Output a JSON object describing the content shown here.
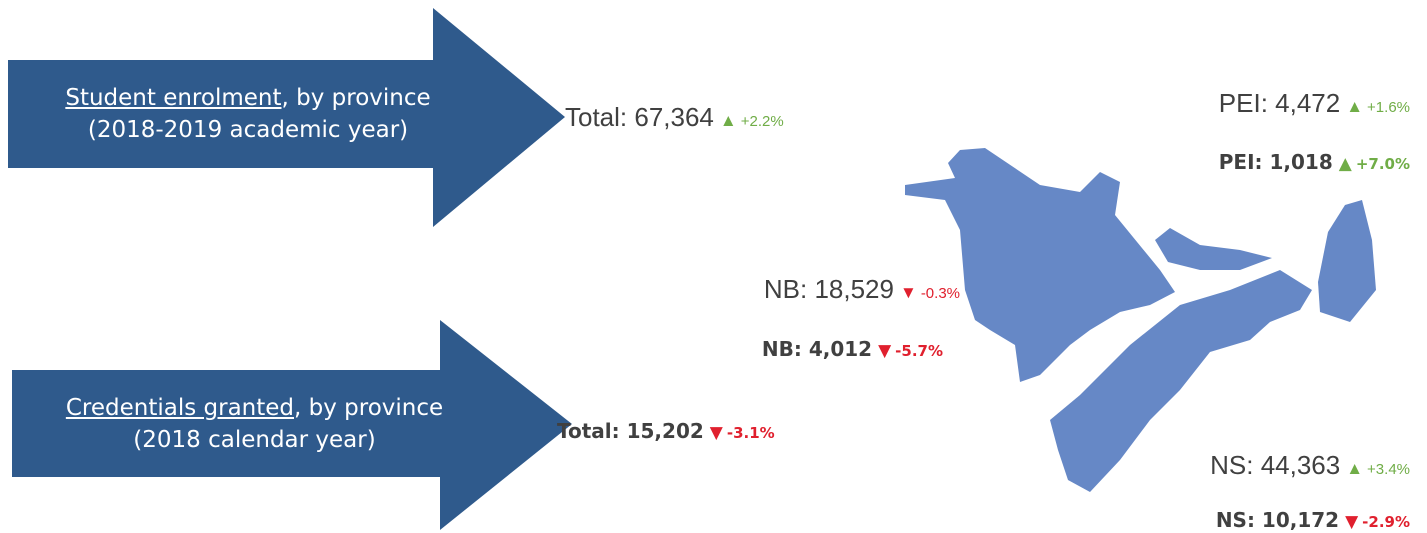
{
  "arrows": [
    {
      "title": "Student enrolment",
      "title_rest": ", by province",
      "subtitle": "(2018-2019 academic year)"
    },
    {
      "title": "Credentials granted",
      "title_rest": ", by province",
      "subtitle": "(2018 calendar year)"
    }
  ],
  "enrolment": {
    "total": {
      "label": "Total: 67,364",
      "arrow": "▲",
      "change": "+2.2%"
    },
    "pei": {
      "label": "PEI: 4,472",
      "arrow": "▲",
      "change": "+1.6%"
    },
    "nb": {
      "label": "NB: 18,529",
      "arrow": "▼",
      "change": "-0.3%"
    },
    "ns": {
      "label": "NS: 44,363",
      "arrow": "▲",
      "change": "+3.4%"
    }
  },
  "credentials": {
    "total": {
      "label": "Total: 15,202",
      "arrow": "▼",
      "change": "-3.1%"
    },
    "pei": {
      "label": "PEI: 1,018",
      "arrow": "▲",
      "change": "+7.0%"
    },
    "nb": {
      "label": "NB: 4,012",
      "arrow": "▼",
      "change": "-5.7%"
    },
    "ns": {
      "label": "NS: 10,172",
      "arrow": "▼",
      "change": "-2.9%"
    }
  }
}
